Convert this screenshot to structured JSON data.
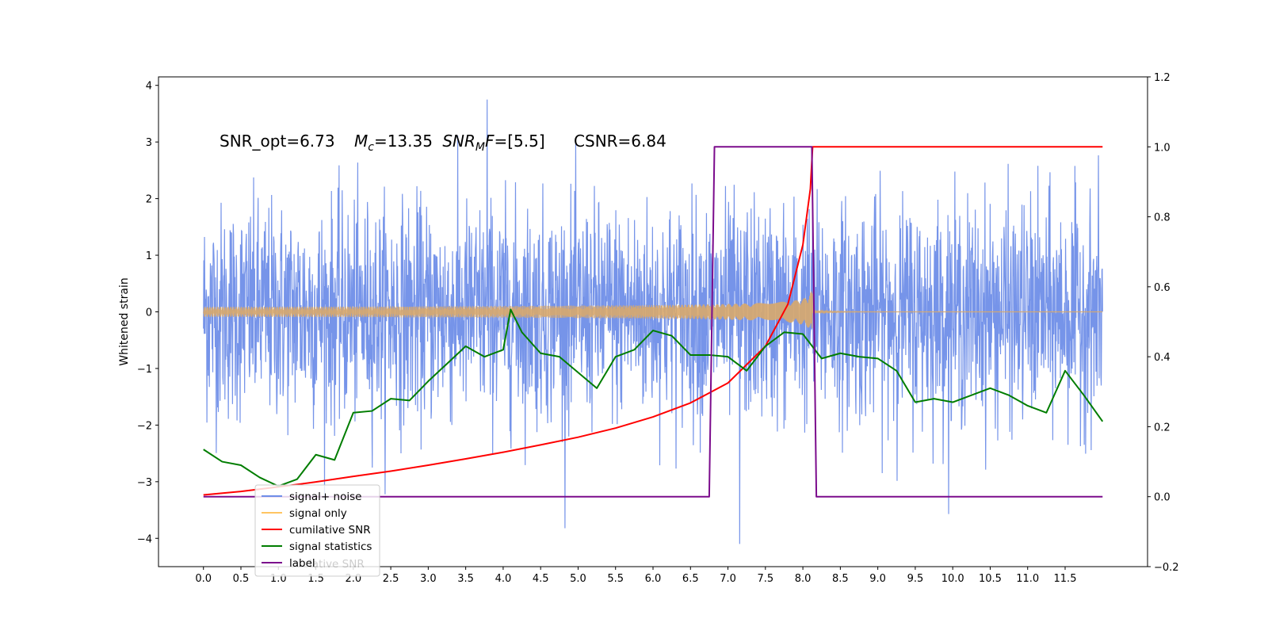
{
  "chart_data": {
    "type": "line",
    "title": "",
    "xlabel": "",
    "ylabel": "Whitened strain",
    "xlim": [
      -0.6,
      12.6
    ],
    "ylim": [
      -4.5,
      4.15
    ],
    "y2lim": [
      -0.2,
      1.2
    ],
    "grid": false,
    "x_ticks": [
      "0.0",
      "0.5",
      "1.0",
      "1.5",
      "2.0",
      "2.5",
      "3.0",
      "3.5",
      "4.0",
      "4.5",
      "5.0",
      "5.5",
      "6.0",
      "6.5",
      "7.0",
      "7.5",
      "8.0",
      "8.5",
      "9.0",
      "9.5",
      "10.0",
      "10.5",
      "11.0",
      "11.5"
    ],
    "y_ticks": [
      "4",
      "3",
      "2",
      "1",
      "0",
      "−1",
      "−2",
      "−3",
      "−4"
    ],
    "y2_ticks": [
      "1.2",
      "1.0",
      "0.8",
      "0.6",
      "0.4",
      "0.2",
      "0.0",
      "−0.2"
    ],
    "annotation": {
      "snr_opt": "SNR_opt=6.73",
      "mc_symbol": "M",
      "mc_sub": "c",
      "mc_value": "=13.35",
      "snr_mf_symbol": "SNR",
      "snr_mf_sub": "M",
      "snr_mf_f": "F",
      "snr_mf_value": "=[5.5]",
      "csnr": "CSNR=6.84"
    },
    "legend": {
      "placement": "lower-left",
      "items": [
        {
          "label": "signal+ noise",
          "color": "#6f8ee8"
        },
        {
          "label": "signal only",
          "color": "#ffc561"
        },
        {
          "label": "cumilative SNR",
          "color": "#ff0000"
        },
        {
          "label": "signal statistics",
          "color": "#007d00"
        },
        {
          "label": "label",
          "color": "#7b0b8c"
        }
      ],
      "overlapped_text": "lative SNR"
    },
    "series": [
      {
        "name": "signal+ noise",
        "axis": "left",
        "color": "#6f8ee8",
        "description_values": {
          "t_start": 0.0,
          "t_end": 12.0,
          "mean": 0.0,
          "std": 0.95,
          "min": -4.1,
          "max": 3.75
        }
      },
      {
        "name": "signal only",
        "axis": "left",
        "color": "#d9a96c",
        "description_values": {
          "t_start": 0.0,
          "t_end": 12.0,
          "peak_time": 8.13,
          "peak_amplitude": 0.65
        }
      },
      {
        "name": "cumilative SNR",
        "axis": "right",
        "color": "#ff0000",
        "x": [
          0.0,
          0.5,
          1.0,
          1.5,
          2.0,
          2.5,
          3.0,
          3.5,
          4.0,
          4.5,
          5.0,
          5.5,
          6.0,
          6.5,
          7.0,
          7.5,
          7.8,
          8.0,
          8.1,
          8.13,
          8.2,
          9.0,
          10.0,
          11.0,
          12.0
        ],
        "values": [
          0.005,
          0.015,
          0.028,
          0.042,
          0.058,
          0.073,
          0.09,
          0.108,
          0.127,
          0.148,
          0.17,
          0.196,
          0.228,
          0.268,
          0.325,
          0.43,
          0.55,
          0.72,
          0.88,
          1.0,
          1.0,
          1.0,
          1.0,
          1.0,
          1.0
        ]
      },
      {
        "name": "signal statistics",
        "axis": "right",
        "color": "#007d00",
        "x": [
          0.0,
          0.25,
          0.5,
          0.75,
          1.0,
          1.25,
          1.5,
          1.75,
          2.0,
          2.25,
          2.5,
          2.75,
          3.0,
          3.25,
          3.5,
          3.75,
          4.0,
          4.1,
          4.25,
          4.5,
          4.75,
          5.0,
          5.25,
          5.5,
          5.75,
          6.0,
          6.25,
          6.5,
          6.75,
          7.0,
          7.25,
          7.5,
          7.75,
          8.0,
          8.25,
          8.5,
          8.75,
          9.0,
          9.25,
          9.5,
          9.75,
          10.0,
          10.25,
          10.5,
          10.75,
          11.0,
          11.25,
          11.5,
          11.75,
          12.0
        ],
        "values": [
          0.135,
          0.1,
          0.09,
          0.055,
          0.03,
          0.05,
          0.12,
          0.105,
          0.24,
          0.245,
          0.28,
          0.275,
          0.33,
          0.38,
          0.43,
          0.4,
          0.42,
          0.535,
          0.47,
          0.41,
          0.4,
          0.355,
          0.31,
          0.4,
          0.42,
          0.475,
          0.46,
          0.405,
          0.405,
          0.4,
          0.36,
          0.43,
          0.47,
          0.465,
          0.395,
          0.41,
          0.4,
          0.395,
          0.36,
          0.27,
          0.28,
          0.27,
          0.29,
          0.31,
          0.29,
          0.26,
          0.24,
          0.36,
          0.29,
          0.215
        ]
      },
      {
        "name": "label",
        "axis": "right",
        "color": "#7b0b8c",
        "x": [
          0.0,
          6.75,
          6.82,
          8.12,
          8.18,
          12.0
        ],
        "values": [
          0.0,
          0.0,
          1.0,
          1.0,
          0.0,
          0.0
        ]
      }
    ]
  }
}
